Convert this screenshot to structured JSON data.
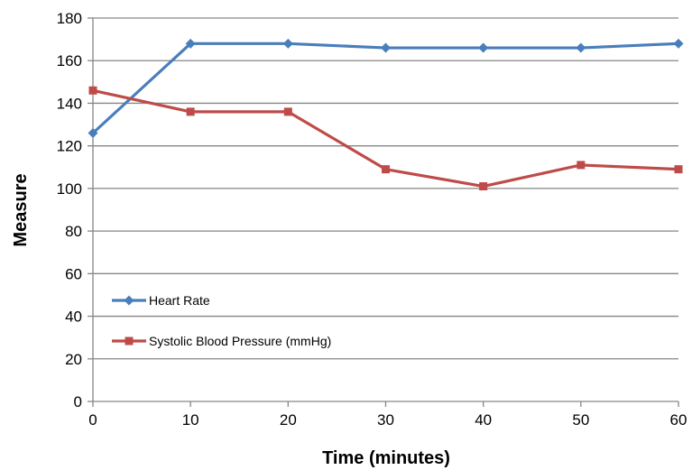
{
  "chart_data": {
    "type": "line",
    "title": "",
    "xlabel": "Time (minutes)",
    "ylabel": "Measure",
    "x": [
      0,
      10,
      20,
      30,
      40,
      50,
      60
    ],
    "xlim": [
      0,
      60
    ],
    "ylim": [
      0,
      180
    ],
    "xticks": [
      0,
      10,
      20,
      30,
      40,
      50,
      60
    ],
    "yticks": [
      0,
      20,
      40,
      60,
      80,
      100,
      120,
      140,
      160,
      180
    ],
    "grid": "horizontal",
    "legend_position": "lower-left inside plot",
    "series": [
      {
        "name": "Heart Rate",
        "values": [
          126,
          168,
          168,
          166,
          166,
          166,
          168
        ],
        "color": "#4A7EBB",
        "marker": "diamond"
      },
      {
        "name": "Systolic Blood Pressure (mmHg)",
        "values": [
          146,
          136,
          136,
          109,
          101,
          111,
          109
        ],
        "color": "#BE4B48",
        "marker": "square"
      }
    ]
  }
}
